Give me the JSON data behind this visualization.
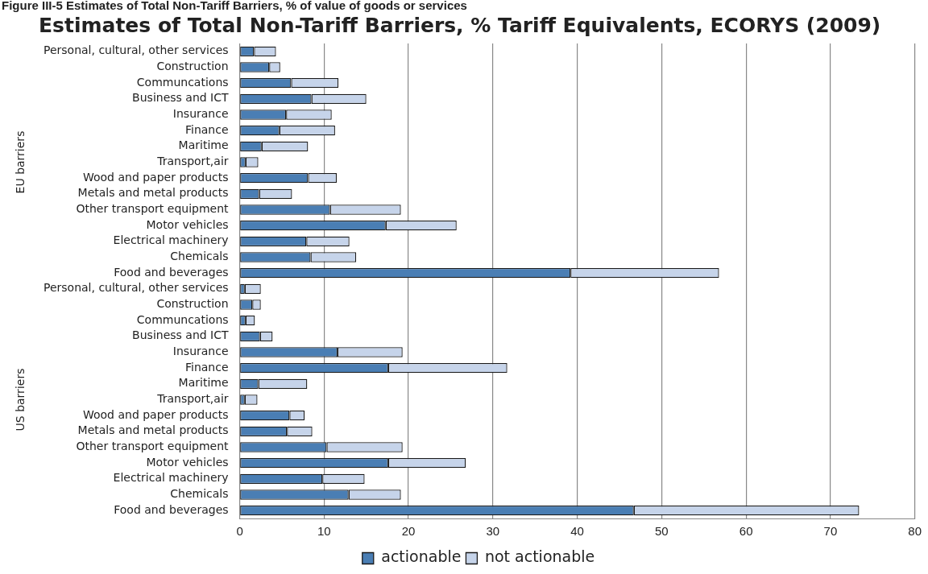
{
  "chart_data": {
    "type": "bar",
    "orientation": "horizontal",
    "stacked": true,
    "title": "Estimates of Total Non-Tariff Barriers, % Tariff Equivalents, ECORYS (2009)",
    "annotations": [
      "Figure III-5 Estimates of Total Non-Tariff Barriers, % of value of goods or services",
      "EU barriers",
      "US barriers"
    ],
    "categories": [
      "Personal, cultural, other services",
      "Construction",
      "Communcations",
      "Business and ICT",
      "Insurance",
      "Finance",
      "Maritime",
      "Transport,air",
      "Wood and paper products",
      "Metals and metal products",
      "Other transport equipment",
      "Motor vehicles",
      "Electrical machinery",
      "Chemicals",
      "Food and beverages",
      "Personal, cultural, other services",
      "Construction",
      "Communcations",
      "Business and ICT",
      "Insurance",
      "Finance",
      "Maritime",
      "Transport,air",
      "Wood and paper products",
      "Metals and metal products",
      "Other transport equipment",
      "Motor vehicles",
      "Electrical machinery",
      "Chemicals",
      "Food and beverages"
    ],
    "series": [
      {
        "name": "actionable",
        "color": "#4a7eb4",
        "values": [
          1.7,
          3.5,
          6.1,
          8.5,
          5.5,
          4.7,
          2.6,
          0.7,
          8.1,
          2.3,
          10.7,
          17.3,
          7.9,
          8.4,
          39.2,
          0.6,
          1.5,
          0.7,
          2.4,
          11.6,
          17.6,
          2.2,
          0.6,
          5.9,
          5.6,
          10.3,
          17.6,
          9.8,
          12.9,
          46.7
        ]
      },
      {
        "name": "not actionable",
        "color": "#c6d4ea",
        "values": [
          2.6,
          1.3,
          5.6,
          6.5,
          5.4,
          6.6,
          5.5,
          1.5,
          3.4,
          3.9,
          8.4,
          8.4,
          5.1,
          5.4,
          17.6,
          1.9,
          1.0,
          1.1,
          1.5,
          7.7,
          14.1,
          5.8,
          1.5,
          1.8,
          3.0,
          9.0,
          9.2,
          5.0,
          6.2,
          26.7
        ]
      }
    ],
    "xlim": [
      0,
      80
    ],
    "xticks": [
      0,
      10,
      20,
      30,
      40,
      50,
      60,
      70,
      80
    ],
    "grid": "x",
    "legend": "bottom"
  }
}
